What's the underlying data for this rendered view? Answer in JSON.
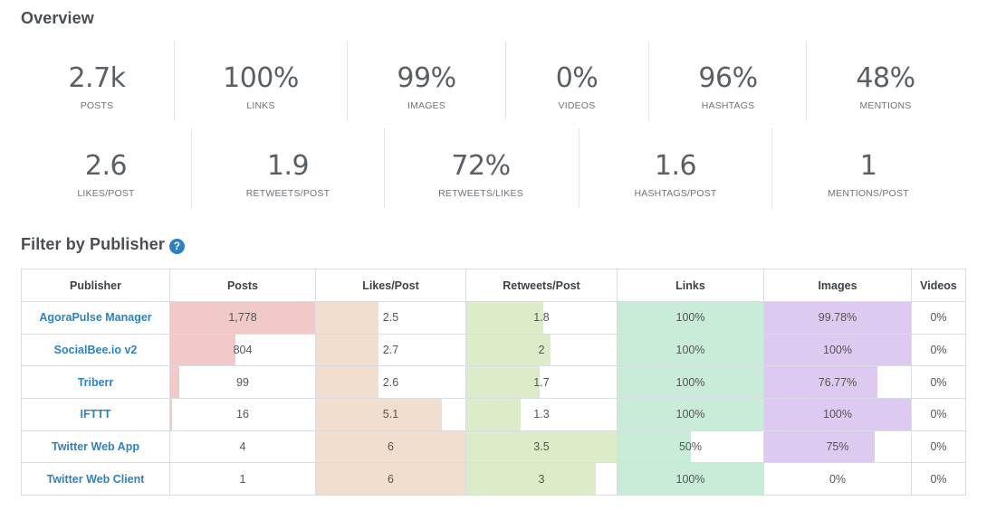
{
  "overview": {
    "title": "Overview",
    "row1": [
      {
        "value": "2.7k",
        "label": "POSTS"
      },
      {
        "value": "100%",
        "label": "LINKS"
      },
      {
        "value": "99%",
        "label": "IMAGES"
      },
      {
        "value": "0%",
        "label": "VIDEOS"
      },
      {
        "value": "96%",
        "label": "HASHTAGS"
      },
      {
        "value": "48%",
        "label": "MENTIONS"
      }
    ],
    "row2": [
      {
        "value": "2.6",
        "label": "LIKES/POST"
      },
      {
        "value": "1.9",
        "label": "RETWEETS/POST"
      },
      {
        "value": "72%",
        "label": "RETWEETS/LIKES"
      },
      {
        "value": "1.6",
        "label": "HASHTAGS/POST"
      },
      {
        "value": "1",
        "label": "MENTIONS/POST"
      }
    ]
  },
  "filter": {
    "title": "Filter by Publisher",
    "help_icon": "?",
    "columns": [
      "Publisher",
      "Posts",
      "Likes/Post",
      "Retweets/Post",
      "Links",
      "Images",
      "Videos"
    ],
    "colors": {
      "posts": "#f0c9c8",
      "likes": "#f1dece",
      "retweets": "#dcecc8",
      "links": "#c8ecd8",
      "images": "#dccaf0",
      "publisher": "#2f82bb"
    },
    "rows": [
      {
        "publisher": "AgoraPulse Manager",
        "posts": "1,778",
        "posts_fill": 1.0,
        "likes": "2.5",
        "likes_fill": 0.42,
        "retweets": "1.8",
        "retweets_fill": 0.51,
        "links": "100%",
        "links_fill": 1.0,
        "images": "99.78%",
        "images_fill": 0.998,
        "videos": "0%"
      },
      {
        "publisher": "SocialBee.io v2",
        "posts": "804",
        "posts_fill": 0.45,
        "likes": "2.7",
        "likes_fill": 0.42,
        "retweets": "2",
        "retweets_fill": 0.56,
        "links": "100%",
        "links_fill": 1.0,
        "images": "100%",
        "images_fill": 1.0,
        "videos": "0%"
      },
      {
        "publisher": "Triberr",
        "posts": "99",
        "posts_fill": 0.06,
        "likes": "2.6",
        "likes_fill": 0.42,
        "retweets": "1.7",
        "retweets_fill": 0.49,
        "links": "100%",
        "links_fill": 1.0,
        "images": "76.77%",
        "images_fill": 0.77,
        "videos": "0%"
      },
      {
        "publisher": "IFTTT",
        "posts": "16",
        "posts_fill": 0.01,
        "likes": "5.1",
        "likes_fill": 0.84,
        "retweets": "1.3",
        "retweets_fill": 0.36,
        "links": "100%",
        "links_fill": 1.0,
        "images": "100%",
        "images_fill": 1.0,
        "videos": "0%"
      },
      {
        "publisher": "Twitter Web App",
        "posts": "4",
        "posts_fill": 0.0,
        "likes": "6",
        "likes_fill": 1.0,
        "retweets": "3.5",
        "retweets_fill": 1.0,
        "links": "50%",
        "links_fill": 0.5,
        "images": "75%",
        "images_fill": 0.75,
        "videos": "0%"
      },
      {
        "publisher": "Twitter Web Client",
        "posts": "1",
        "posts_fill": 0.0,
        "likes": "6",
        "likes_fill": 1.0,
        "retweets": "3",
        "retweets_fill": 0.86,
        "links": "100%",
        "links_fill": 1.0,
        "images": "0%",
        "images_fill": 0.0,
        "videos": "0%"
      }
    ]
  }
}
